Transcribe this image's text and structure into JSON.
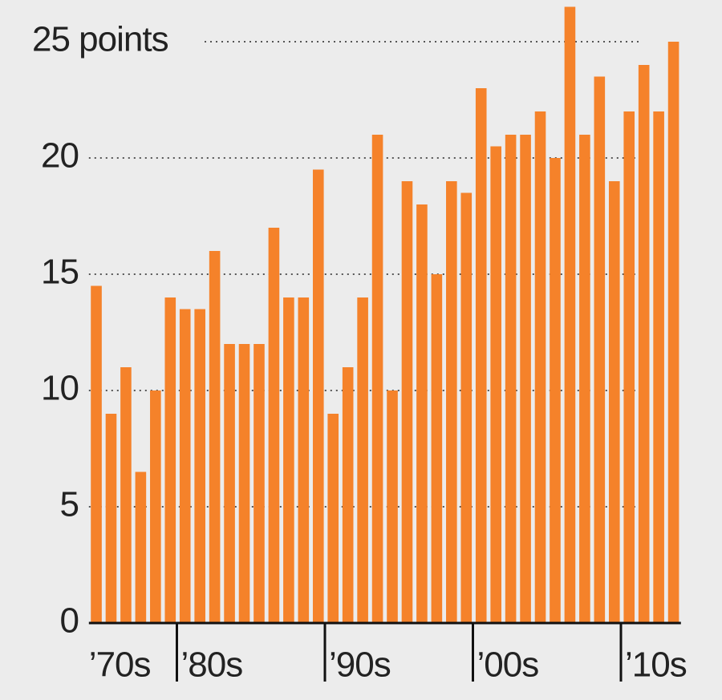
{
  "chart_data": {
    "type": "bar",
    "categories": [
      "’70s",
      null,
      null,
      null,
      null,
      null,
      "’80s",
      null,
      null,
      null,
      null,
      null,
      null,
      null,
      null,
      null,
      "’90s",
      null,
      null,
      null,
      null,
      null,
      null,
      null,
      null,
      null,
      "’00s",
      null,
      null,
      null,
      null,
      null,
      null,
      null,
      null,
      null,
      "’10s",
      null,
      null,
      null
    ],
    "values": [
      14.5,
      9,
      11,
      6.5,
      10,
      14,
      13.5,
      13.5,
      16,
      12,
      12,
      12,
      17,
      14,
      14,
      19.5,
      9,
      11,
      14,
      21,
      10,
      19,
      18,
      15,
      19,
      18.5,
      23,
      20.5,
      21,
      21,
      22,
      20,
      26.5,
      21,
      23.5,
      19,
      22,
      24,
      22,
      25
    ],
    "color": "#f5822a",
    "ylim": [
      0,
      26.5
    ],
    "yticks": [
      0,
      5,
      10,
      15,
      20,
      {
        "value": 25,
        "label": "25 points"
      }
    ],
    "grid": true
  }
}
